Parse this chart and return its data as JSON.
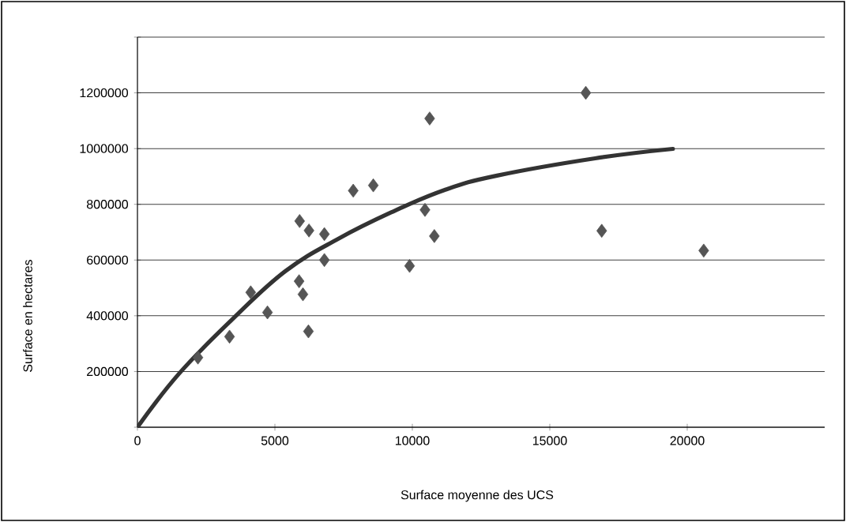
{
  "chart_data": {
    "type": "scatter",
    "xlabel": "Surface moyenne des UCS",
    "ylabel": "Surface en hectares",
    "xlim": [
      0,
      25000
    ],
    "xticks": [
      0,
      5000,
      10000,
      15000,
      20000
    ],
    "ylim": [
      0,
      1400000
    ],
    "yticks": [
      {
        "value": 0,
        "label": null
      },
      200000,
      400000,
      600000,
      800000,
      1000000,
      1200000,
      {
        "value": 1400000,
        "label": null
      }
    ],
    "grid": "y",
    "marker": "diamond",
    "series": [
      {
        "color": "#555555",
        "x": [
          2200,
          3350,
          4120,
          4730,
          5900,
          6240,
          6800,
          5880,
          6020,
          6220,
          6800,
          7850,
          8580,
          9900,
          10460,
          10800,
          10630,
          16310,
          16890,
          20600
        ],
        "values": [
          250000,
          325000,
          484000,
          412000,
          740000,
          706000,
          693000,
          524000,
          477000,
          344000,
          600000,
          849000,
          868000,
          579000,
          780000,
          686000,
          1108000,
          1200000,
          705000,
          634000
        ]
      },
      {
        "type": "line",
        "marker": "none",
        "line_style": "solid",
        "color": "#333333",
        "x": [
          0,
          1520,
          3450,
          5380,
          7300,
          9230,
          11160,
          13080,
          16650,
          19480
        ],
        "values": [
          0,
          193000,
          387000,
          560000,
          676000,
          771000,
          851000,
          903000,
          965000,
          999000
        ]
      }
    ]
  }
}
